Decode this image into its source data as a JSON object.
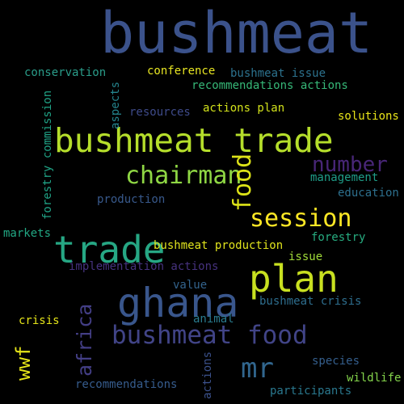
{
  "words": {
    "bushmeat": {
      "text": "bushmeat",
      "color": "#3b528b"
    },
    "bushmeat_trade": {
      "text": "bushmeat trade",
      "color": "#b5de2b"
    },
    "trade": {
      "text": "trade",
      "color": "#26a784"
    },
    "ghana": {
      "text": "ghana",
      "color": "#39568c"
    },
    "plan": {
      "text": "plan",
      "color": "#c8e020"
    },
    "bushmeat_food": {
      "text": "bushmeat food",
      "color": "#414487"
    },
    "chairman": {
      "text": "chairman",
      "color": "#8fd744"
    },
    "session": {
      "text": "session",
      "color": "#fde725"
    },
    "number": {
      "text": "number",
      "color": "#482677"
    },
    "food": {
      "text": "food",
      "color": "#dde318"
    },
    "africa": {
      "text": "africa",
      "color": "#433e85"
    },
    "mr": {
      "text": "mr",
      "color": "#31668e"
    },
    "wwf": {
      "text": "wwf",
      "color": "#e5e419"
    },
    "conservation": {
      "text": "conservation",
      "color": "#2a9d8a"
    },
    "conference": {
      "text": "conference",
      "color": "#e8e622"
    },
    "bushmeat_issue": {
      "text": "bushmeat issue",
      "color": "#2c728e"
    },
    "recommendations_actions": {
      "text": "recommendations actions",
      "color": "#36b878"
    },
    "aspects": {
      "text": "aspects",
      "color": "#25858e"
    },
    "forestry_commission": {
      "text": "forestry commission",
      "color": "#20a386"
    },
    "resources": {
      "text": "resources",
      "color": "#3e4a89"
    },
    "actions_plan": {
      "text": "actions plan",
      "color": "#d2e21b"
    },
    "solutions": {
      "text": "solutions",
      "color": "#e8e419"
    },
    "management": {
      "text": "management",
      "color": "#1f9e89"
    },
    "education": {
      "text": "education",
      "color": "#2d708e"
    },
    "production": {
      "text": "production",
      "color": "#38598c"
    },
    "markets": {
      "text": "markets",
      "color": "#22a884"
    },
    "bushmeat_production": {
      "text": "bushmeat production",
      "color": "#e0e31d"
    },
    "forestry": {
      "text": "forestry",
      "color": "#27ad81"
    },
    "implementation_actions": {
      "text": "implementation actions",
      "color": "#46327e"
    },
    "issue": {
      "text": "issue",
      "color": "#a0da39"
    },
    "value": {
      "text": "value",
      "color": "#33638d"
    },
    "bushmeat_crisis": {
      "text": "bushmeat crisis",
      "color": "#2e6e8e"
    },
    "crisis": {
      "text": "crisis",
      "color": "#e5e419"
    },
    "animal": {
      "text": "animal",
      "color": "#297b8e"
    },
    "species": {
      "text": "species",
      "color": "#355f8d"
    },
    "wildlife": {
      "text": "wildlife",
      "color": "#84d44b"
    },
    "recommendations": {
      "text": "recommendations",
      "color": "#365c8d"
    },
    "actions": {
      "text": "actions",
      "color": "#3b518b"
    },
    "participants": {
      "text": "participants",
      "color": "#2a788e"
    }
  }
}
